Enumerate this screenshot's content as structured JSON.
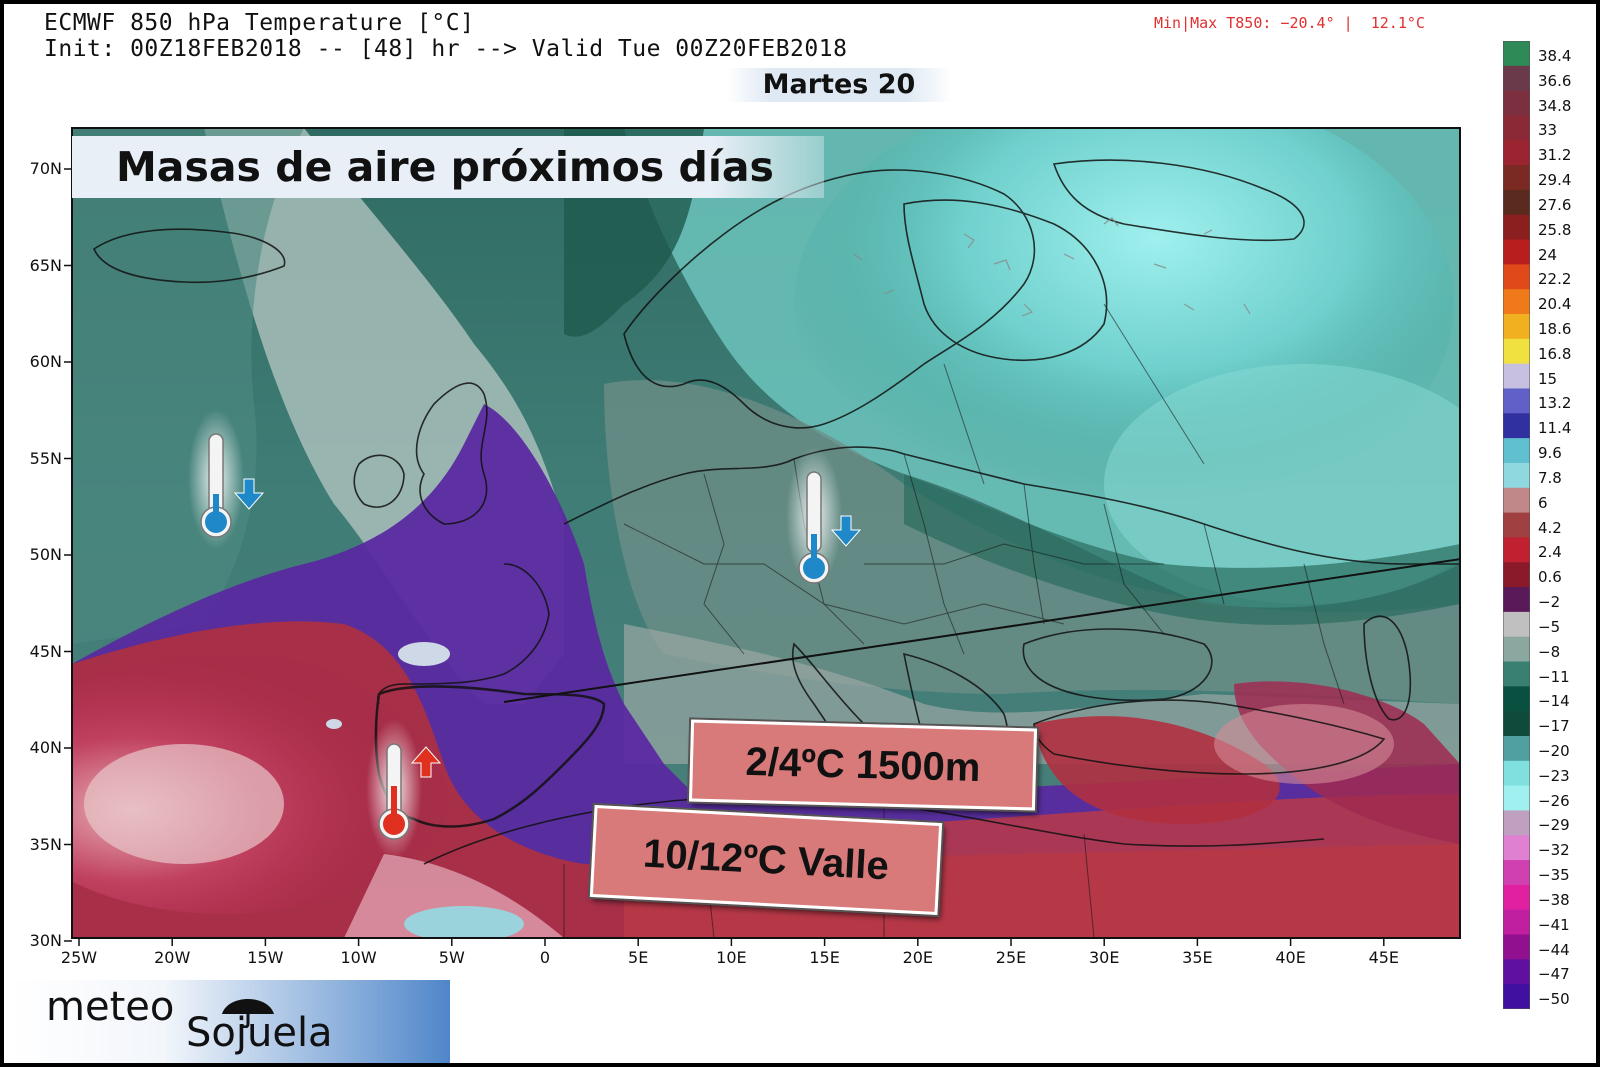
{
  "header": {
    "title_line1": "ECMWF 850 hPa Temperature [°C]",
    "title_line2": "Init: 00Z18FEB2018 -- [48] hr --> Valid Tue 00Z20FEB2018",
    "minmax": "Min|Max T850: −20.4° |  12.1°C",
    "day_label": "Martes 20"
  },
  "banner": {
    "text": "Masas de aire próximos días"
  },
  "callouts": {
    "altitude": "2/4ºC 1500m",
    "valley": "10/12ºC Valle"
  },
  "axes": {
    "lat_labels": [
      "70N",
      "65N",
      "60N",
      "55N",
      "50N",
      "45N",
      "40N",
      "35N",
      "30N"
    ],
    "lon_labels": [
      "25W",
      "20W",
      "15W",
      "10W",
      "5W",
      "0",
      "5E",
      "10E",
      "15E",
      "20E",
      "25E",
      "30E",
      "35E",
      "40E",
      "45E"
    ]
  },
  "legend": {
    "labels": [
      "38.4",
      "36.6",
      "34.8",
      "33",
      "31.2",
      "29.4",
      "27.6",
      "25.8",
      "24",
      "22.2",
      "20.4",
      "18.6",
      "16.8",
      "15",
      "13.2",
      "11.4",
      "9.6",
      "7.8",
      "6",
      "4.2",
      "2.4",
      "0.6",
      "−2",
      "−5",
      "−8",
      "−11",
      "−14",
      "−17",
      "−20",
      "−23",
      "−26",
      "−29",
      "−32",
      "−35",
      "−38",
      "−41",
      "−44",
      "−47",
      "−50"
    ],
    "colors": [
      "#2e8b57",
      "#6b3a4a",
      "#7b2f3f",
      "#8b2a36",
      "#9a2530",
      "#7a2a22",
      "#5a2a1e",
      "#8b1e1e",
      "#b81e1e",
      "#e04a1a",
      "#f07a1a",
      "#f0b020",
      "#f0e040",
      "#c8c0e0",
      "#6060c8",
      "#3030a0",
      "#60c0d0",
      "#90d8e0",
      "#c08888",
      "#a04040",
      "#c02030",
      "#8a1a2a",
      "#5a1a5a",
      "#c0c0c0",
      "#8aa8a0",
      "#3a8070",
      "#0a5040",
      "#104a3a",
      "#50a0a0",
      "#80e0e0",
      "#a0f0f0",
      "#c0a0c0",
      "#e080d0",
      "#d040b0",
      "#e020a0",
      "#c020a0",
      "#901090",
      "#6010a0",
      "#4010a0"
    ]
  },
  "icons": {
    "cold_marker": "thermometer-cold-icon",
    "warm_marker": "thermometer-warm-icon",
    "down_arrow": "arrow-down-icon",
    "up_arrow": "arrow-up-icon"
  },
  "colors": {
    "cold": "#1e88c8",
    "warm": "#e03020",
    "callout": "#d97a7a"
  },
  "logo": {
    "top": "meteo",
    "bottom": "Sojuela"
  }
}
